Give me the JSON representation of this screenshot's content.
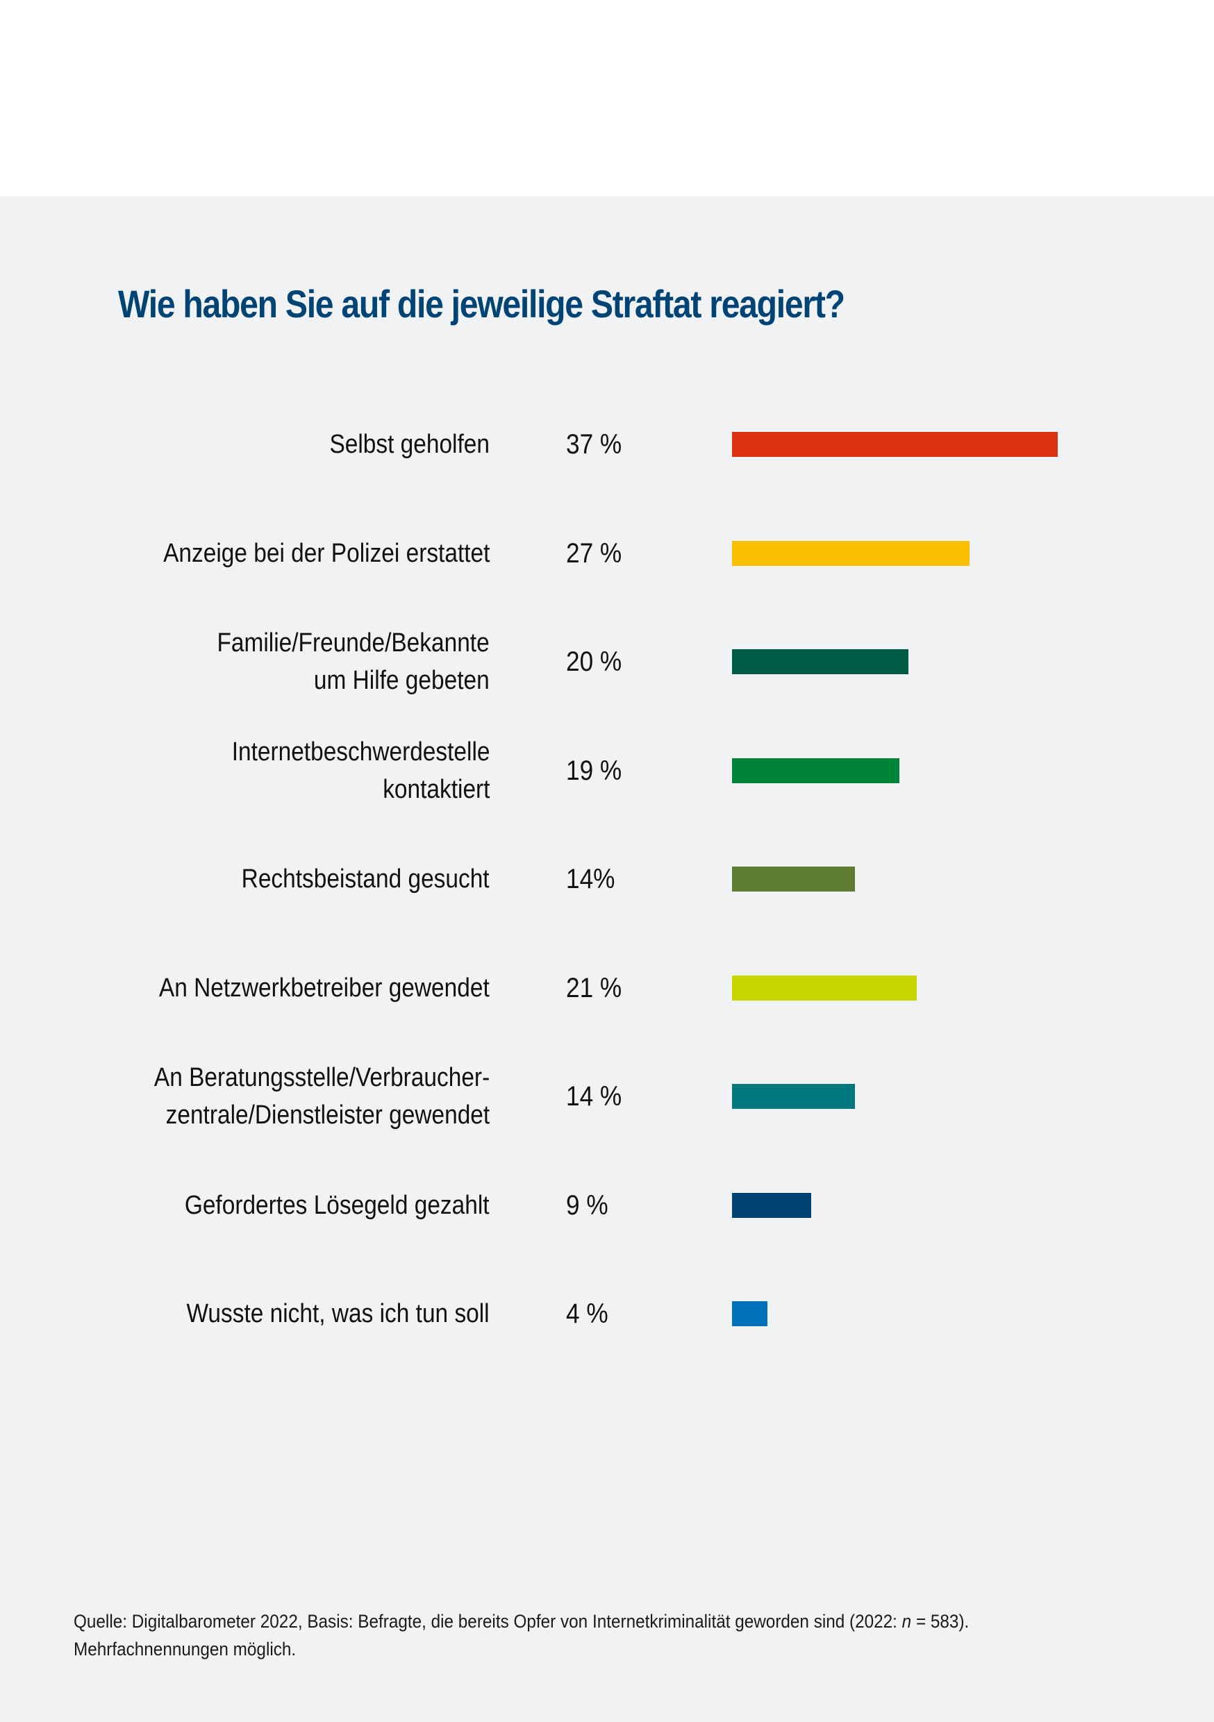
{
  "chart_data": {
    "type": "bar",
    "orientation": "horizontal",
    "title": "Wie haben Sie auf die jeweilige Straftat reagiert?",
    "xlabel": "",
    "ylabel": "",
    "xlim": [
      0,
      37
    ],
    "grid": false,
    "legend": "none",
    "categories": [
      [
        "Selbst geholfen"
      ],
      [
        "Anzeige bei der Polizei erstattet"
      ],
      [
        "Familie/Freunde/Bekannte",
        "um Hilfe gebeten"
      ],
      [
        "Internetbeschwerdestelle",
        "kontaktiert"
      ],
      [
        "Rechtsbeistand gesucht"
      ],
      [
        "An Netzwerkbetreiber gewendet"
      ],
      [
        "An Beratungsstelle/Verbraucher-",
        "zentrale/Dienstleister gewendet"
      ],
      [
        "Gefordertes Lösegeld gezahlt"
      ],
      [
        "Wusste nicht, was ich tun soll"
      ]
    ],
    "values": [
      37,
      27,
      20,
      19,
      14,
      21,
      14,
      9,
      4
    ],
    "value_labels": [
      "37 %",
      "27 %",
      "20 %",
      "19 %",
      "14%",
      "21 %",
      "14 %",
      "9 %",
      "4 %"
    ],
    "colors": [
      "#dc3212",
      "#fac000",
      "#005b45",
      "#00843a",
      "#5e7d32",
      "#c9d600",
      "#00787e",
      "#004375",
      "#0072bb"
    ],
    "unit": "%"
  },
  "title_color": "#004375",
  "footnote": {
    "line1_pre": "Quelle: Digitalbarometer 2022, Basis: Befragte, die bereits Opfer von Internetkriminalität geworden sind (2022: ",
    "line1_n": "n",
    "line1_post": " = 583).",
    "line2": "Mehrfachnennungen möglich."
  }
}
